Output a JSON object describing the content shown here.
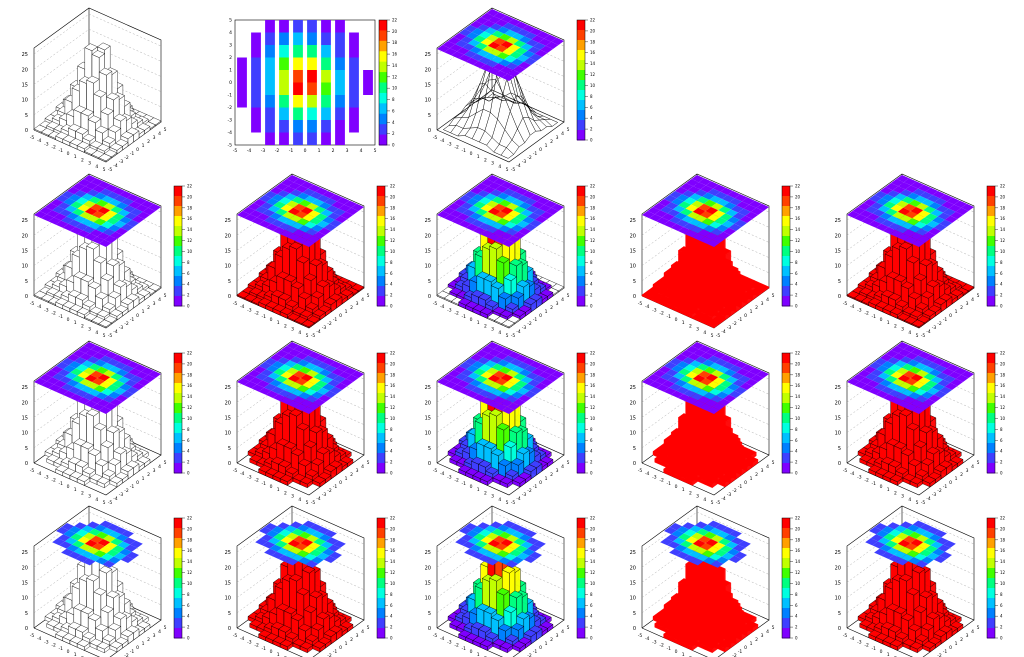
{
  "chart_data": {
    "type": "heatmap",
    "description_kind": "grid of 18 ROOT TH2 rendering-option examples",
    "x_range": [
      -5,
      5
    ],
    "y_range": [
      -5,
      5
    ],
    "z_range": [
      0,
      22
    ],
    "z_axis_ticks": [
      0,
      5,
      10,
      15,
      20,
      25
    ],
    "x_ticks": [
      -5,
      -4,
      -3,
      -2,
      -1,
      0,
      1,
      2,
      3,
      4,
      5
    ],
    "y_ticks": [
      -5,
      -4,
      -3,
      -2,
      -1,
      0,
      1,
      2,
      3,
      4,
      5
    ],
    "palette_ticks": [
      0,
      2,
      4,
      6,
      8,
      10,
      12,
      14,
      16,
      18,
      20,
      22
    ],
    "palette_colors": [
      "#ffffff",
      "#7f00ff",
      "#3f3fff",
      "#0080ff",
      "#00c0ff",
      "#00ffe0",
      "#00ff80",
      "#40ff00",
      "#c0ff00",
      "#ffff00",
      "#ffa000",
      "#ff4000",
      "#ff0000"
    ],
    "heat_grid": [
      [
        0,
        0,
        1,
        1,
        2,
        2,
        1,
        1,
        0,
        0
      ],
      [
        0,
        1,
        2,
        3,
        5,
        4,
        3,
        1,
        1,
        0
      ],
      [
        0,
        1,
        3,
        7,
        10,
        9,
        6,
        3,
        1,
        0
      ],
      [
        1,
        2,
        5,
        11,
        16,
        15,
        10,
        4,
        2,
        0
      ],
      [
        1,
        3,
        7,
        14,
        22,
        20,
        13,
        6,
        2,
        1
      ],
      [
        1,
        3,
        7,
        15,
        21,
        22,
        14,
        6,
        3,
        1
      ],
      [
        1,
        2,
        6,
        12,
        17,
        16,
        11,
        5,
        2,
        0
      ],
      [
        0,
        1,
        4,
        8,
        11,
        10,
        7,
        3,
        1,
        0
      ],
      [
        0,
        1,
        2,
        4,
        6,
        5,
        3,
        2,
        1,
        0
      ],
      [
        0,
        0,
        1,
        1,
        2,
        2,
        1,
        1,
        0,
        0
      ]
    ],
    "panels": [
      {
        "row": 0,
        "col": 0,
        "style": "lego",
        "fill": "white",
        "has_top_map": false,
        "has_palette": false
      },
      {
        "row": 0,
        "col": 1,
        "style": "colz",
        "has_palette": true
      },
      {
        "row": 0,
        "col": 2,
        "style": "surf",
        "fill": "mesh",
        "has_top_map": true,
        "has_palette": true
      },
      {
        "row": 1,
        "col": 0,
        "style": "lego",
        "fill": "white",
        "has_top_map": true,
        "has_palette": true
      },
      {
        "row": 1,
        "col": 1,
        "style": "lego",
        "fill": "red",
        "has_top_map": true,
        "has_palette": true
      },
      {
        "row": 1,
        "col": 2,
        "style": "lego",
        "fill": "palette",
        "has_top_map": true,
        "has_palette": true
      },
      {
        "row": 1,
        "col": 3,
        "style": "lego",
        "fill": "solid-red",
        "has_top_map": true,
        "has_palette": true
      },
      {
        "row": 1,
        "col": 4,
        "style": "lego",
        "fill": "red",
        "has_top_map": true,
        "has_palette": true
      },
      {
        "row": 2,
        "col": 0,
        "style": "lego-nofloor",
        "fill": "white",
        "has_top_map": true,
        "has_palette": true
      },
      {
        "row": 2,
        "col": 1,
        "style": "lego-nofloor",
        "fill": "red",
        "has_top_map": true,
        "has_palette": true
      },
      {
        "row": 2,
        "col": 2,
        "style": "lego-nofloor",
        "fill": "palette",
        "has_top_map": true,
        "has_palette": true
      },
      {
        "row": 2,
        "col": 3,
        "style": "lego-nofloor",
        "fill": "solid-red",
        "has_top_map": true,
        "has_palette": true
      },
      {
        "row": 2,
        "col": 4,
        "style": "lego-nofloor",
        "fill": "red",
        "has_top_map": true,
        "has_palette": true
      },
      {
        "row": 3,
        "col": 0,
        "style": "lego-nofloor",
        "fill": "white",
        "has_top_map": "clipped",
        "has_palette": true
      },
      {
        "row": 3,
        "col": 1,
        "style": "lego-nofloor",
        "fill": "red",
        "has_top_map": "clipped",
        "has_palette": true
      },
      {
        "row": 3,
        "col": 2,
        "style": "lego-nofloor",
        "fill": "palette",
        "has_top_map": "clipped",
        "has_palette": true
      },
      {
        "row": 3,
        "col": 3,
        "style": "lego-nofloor",
        "fill": "solid-red",
        "has_top_map": "clipped",
        "has_palette": true
      },
      {
        "row": 3,
        "col": 4,
        "style": "lego-nofloor",
        "fill": "red",
        "has_top_map": "clipped",
        "has_palette": true
      }
    ],
    "title": "",
    "xlabel": "",
    "ylabel": "",
    "grid": true
  }
}
